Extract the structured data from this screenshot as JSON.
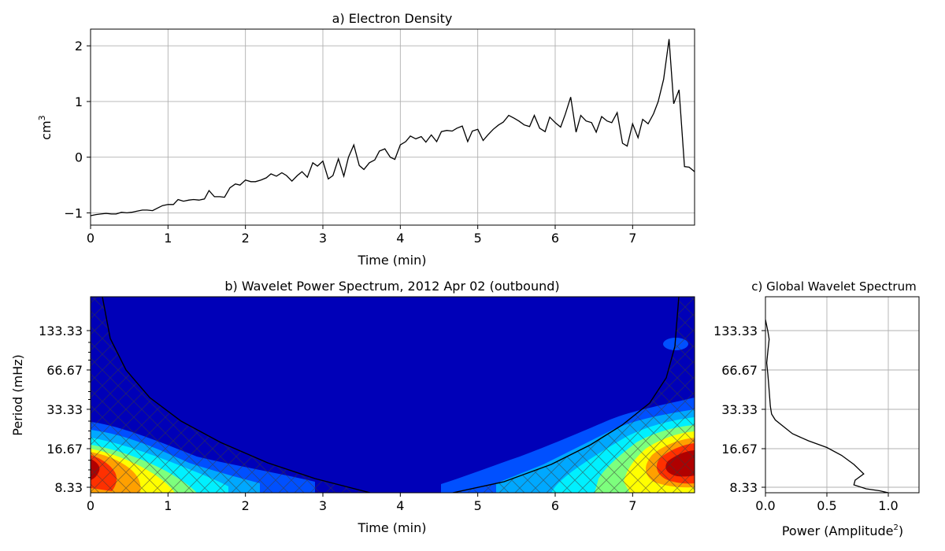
{
  "chart_data": [
    {
      "panel": "a",
      "type": "line",
      "title": "a) Electron Density",
      "xlabel": "Time (min)",
      "ylabel": "cm",
      "ylabel_sup": "3",
      "xlim": [
        0,
        7.8
      ],
      "ylim": [
        -1.22,
        2.3
      ],
      "xticks": [
        0,
        1,
        2,
        3,
        4,
        5,
        6,
        7
      ],
      "yticks": [
        -1,
        0,
        1,
        2
      ],
      "ytick_labels": [
        "−1",
        "0",
        "1",
        "2"
      ],
      "grid": true,
      "series": [
        {
          "color": "#000000",
          "points": [
            [
              0,
              -1.05
            ],
            [
              0.07,
              -1.03
            ],
            [
              0.13,
              -1.02
            ],
            [
              0.2,
              -1.01
            ],
            [
              0.27,
              -1.02
            ],
            [
              0.33,
              -1.02
            ],
            [
              0.4,
              -0.99
            ],
            [
              0.47,
              -1.0
            ],
            [
              0.53,
              -0.99
            ],
            [
              0.6,
              -0.97
            ],
            [
              0.67,
              -0.95
            ],
            [
              0.73,
              -0.95
            ],
            [
              0.8,
              -0.96
            ],
            [
              0.87,
              -0.91
            ],
            [
              0.93,
              -0.87
            ],
            [
              1.0,
              -0.85
            ],
            [
              1.07,
              -0.85
            ],
            [
              1.13,
              -0.76
            ],
            [
              1.2,
              -0.79
            ],
            [
              1.27,
              -0.77
            ],
            [
              1.33,
              -0.76
            ],
            [
              1.4,
              -0.77
            ],
            [
              1.47,
              -0.75
            ],
            [
              1.53,
              -0.6
            ],
            [
              1.6,
              -0.71
            ],
            [
              1.67,
              -0.71
            ],
            [
              1.73,
              -0.72
            ],
            [
              1.8,
              -0.55
            ],
            [
              1.87,
              -0.48
            ],
            [
              1.93,
              -0.5
            ],
            [
              2.0,
              -0.41
            ],
            [
              2.07,
              -0.44
            ],
            [
              2.13,
              -0.44
            ],
            [
              2.2,
              -0.41
            ],
            [
              2.27,
              -0.37
            ],
            [
              2.33,
              -0.3
            ],
            [
              2.4,
              -0.34
            ],
            [
              2.47,
              -0.28
            ],
            [
              2.53,
              -0.33
            ],
            [
              2.6,
              -0.43
            ],
            [
              2.67,
              -0.33
            ],
            [
              2.73,
              -0.26
            ],
            [
              2.8,
              -0.36
            ],
            [
              2.87,
              -0.1
            ],
            [
              2.93,
              -0.16
            ],
            [
              3.0,
              -0.07
            ],
            [
              3.07,
              -0.39
            ],
            [
              3.13,
              -0.33
            ],
            [
              3.2,
              -0.03
            ],
            [
              3.27,
              -0.34
            ],
            [
              3.33,
              0.0
            ],
            [
              3.4,
              0.22
            ],
            [
              3.47,
              -0.15
            ],
            [
              3.53,
              -0.22
            ],
            [
              3.6,
              -0.1
            ],
            [
              3.67,
              -0.05
            ],
            [
              3.73,
              0.11
            ],
            [
              3.8,
              0.15
            ],
            [
              3.87,
              0.0
            ],
            [
              3.93,
              -0.04
            ],
            [
              4.0,
              0.22
            ],
            [
              4.07,
              0.28
            ],
            [
              4.13,
              0.38
            ],
            [
              4.2,
              0.33
            ],
            [
              4.27,
              0.37
            ],
            [
              4.33,
              0.27
            ],
            [
              4.4,
              0.4
            ],
            [
              4.47,
              0.28
            ],
            [
              4.53,
              0.46
            ],
            [
              4.6,
              0.48
            ],
            [
              4.67,
              0.47
            ],
            [
              4.73,
              0.52
            ],
            [
              4.8,
              0.56
            ],
            [
              4.87,
              0.28
            ],
            [
              4.93,
              0.47
            ],
            [
              5.0,
              0.5
            ],
            [
              5.07,
              0.3
            ],
            [
              5.13,
              0.4
            ],
            [
              5.2,
              0.5
            ],
            [
              5.27,
              0.58
            ],
            [
              5.33,
              0.63
            ],
            [
              5.4,
              0.75
            ],
            [
              5.47,
              0.7
            ],
            [
              5.53,
              0.65
            ],
            [
              5.6,
              0.58
            ],
            [
              5.67,
              0.55
            ],
            [
              5.73,
              0.75
            ],
            [
              5.8,
              0.52
            ],
            [
              5.87,
              0.46
            ],
            [
              5.93,
              0.72
            ],
            [
              6.0,
              0.62
            ],
            [
              6.07,
              0.54
            ],
            [
              6.13,
              0.77
            ],
            [
              6.2,
              1.08
            ],
            [
              6.27,
              0.45
            ],
            [
              6.33,
              0.75
            ],
            [
              6.4,
              0.65
            ],
            [
              6.47,
              0.62
            ],
            [
              6.53,
              0.45
            ],
            [
              6.6,
              0.73
            ],
            [
              6.67,
              0.65
            ],
            [
              6.73,
              0.62
            ],
            [
              6.8,
              0.8
            ],
            [
              6.87,
              0.25
            ],
            [
              6.93,
              0.2
            ],
            [
              7.0,
              0.6
            ],
            [
              7.07,
              0.35
            ],
            [
              7.13,
              0.68
            ],
            [
              7.2,
              0.6
            ],
            [
              7.27,
              0.78
            ],
            [
              7.33,
              1.0
            ],
            [
              7.4,
              1.4
            ],
            [
              7.47,
              2.12
            ],
            [
              7.53,
              0.96
            ],
            [
              7.6,
              1.21
            ],
            [
              7.67,
              -0.17
            ],
            [
              7.73,
              -0.18
            ],
            [
              7.8,
              -0.26
            ]
          ]
        }
      ]
    },
    {
      "panel": "b",
      "type": "heatmap",
      "title": "b) Wavelet Power Spectrum, 2012 Apr 02 (outbound)",
      "xlabel": "Time (min)",
      "ylabel": "Period (mHz)",
      "xlim": [
        0,
        7.8
      ],
      "xticks": [
        0,
        1,
        2,
        3,
        4,
        5,
        6,
        7
      ],
      "ytick_labels": [
        "133.33",
        "66.67",
        "33.33",
        "16.67",
        "8.33"
      ],
      "colormap": "jet",
      "background_color": "#0000b8",
      "cone_of_influence": "hatched",
      "power_blobs": [
        {
          "t": 0.0,
          "band": "8.33-16.67",
          "level": 1.0
        },
        {
          "t": 0.6,
          "band": "8.33-16.67",
          "level": 0.7
        },
        {
          "t": 7.5,
          "band": "8.33-16.67",
          "level": 1.0
        },
        {
          "t": 6.6,
          "band": "8.33-16.67",
          "level": 0.55
        },
        {
          "t": 7.6,
          "band": "66.67-133.33",
          "level": 0.2
        }
      ]
    },
    {
      "panel": "c",
      "type": "line",
      "title": "c) Global Wavelet Spectrum",
      "xlabel": "Power (Amplitude",
      "xlabel_sup": "2",
      "xlabel_tail": ")",
      "xlim": [
        0,
        1.25
      ],
      "xticks": [
        0.0,
        0.5,
        1.0
      ],
      "xtick_labels": [
        "0.0",
        "0.5",
        "1.0"
      ],
      "ytick_labels": [
        "133.33",
        "66.67",
        "33.33",
        "16.67",
        "8.33"
      ],
      "grid": true,
      "series": [
        {
          "color": "#000000",
          "points": [
            [
              0.0,
              4.4
            ],
            [
              0.02,
              4.1
            ],
            [
              0.03,
              3.9
            ],
            [
              0.02,
              3.6
            ],
            [
              0.01,
              3.3
            ],
            [
              0.02,
              3.0
            ],
            [
              0.03,
              2.6
            ],
            [
              0.04,
              2.2
            ],
            [
              0.05,
              2.0
            ],
            [
              0.08,
              1.85
            ],
            [
              0.14,
              1.7
            ],
            [
              0.22,
              1.5
            ],
            [
              0.35,
              1.32
            ],
            [
              0.5,
              1.15
            ],
            [
              0.62,
              0.95
            ],
            [
              0.72,
              0.72
            ],
            [
              0.8,
              0.48
            ],
            [
              0.73,
              0.32
            ],
            [
              0.72,
              0.2
            ],
            [
              0.82,
              0.1
            ],
            [
              0.93,
              0.05
            ],
            [
              1.0,
              0.0
            ]
          ]
        }
      ]
    }
  ]
}
